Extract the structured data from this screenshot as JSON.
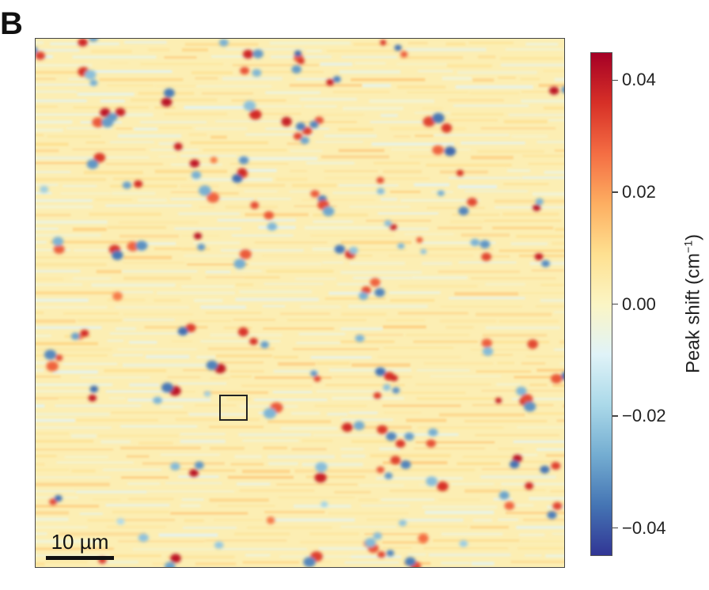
{
  "panel_label": "B",
  "chart_data": {
    "type": "heatmap",
    "colorbar": {
      "title": "Peak shift",
      "unit_base": "cm",
      "unit_exponent": "−1",
      "range": [
        -0.045,
        0.045
      ],
      "ticks": [
        0.04,
        0.02,
        0.0,
        -0.02,
        -0.04
      ],
      "tick_labels": [
        "0.04",
        "0.02",
        "0.00",
        "−0.02",
        "−0.04"
      ],
      "colormap": "RdYlBu_r",
      "colors": [
        "#313695",
        "#4575b4",
        "#74add1",
        "#abd9e9",
        "#e0f3f8",
        "#fbf5c4",
        "#fee090",
        "#fdae61",
        "#f46d43",
        "#d73027",
        "#a50026"
      ]
    },
    "background_value": 0.003,
    "scale_bar": {
      "label": "10 µm",
      "length_um": 10
    },
    "inset_marker": "square"
  }
}
